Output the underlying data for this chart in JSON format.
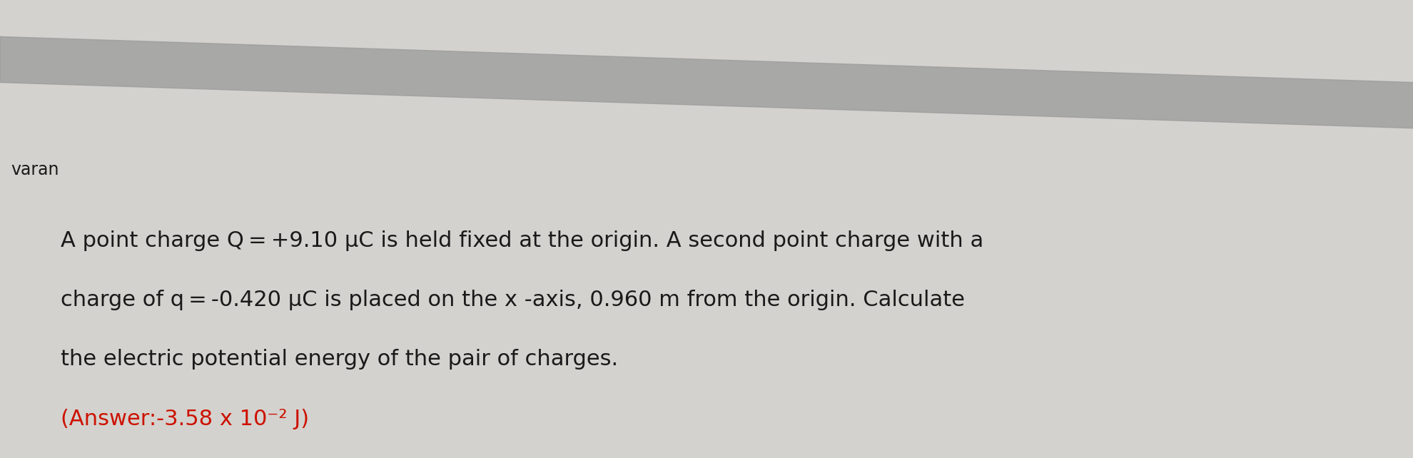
{
  "background_color": "#d4d2ce",
  "top_stripe_color": "#9a9a9a",
  "label_text": "varan",
  "label_fontsize": 17,
  "label_color": "#1a1a1a",
  "body_text_line1": "A point charge Q = +9.10 μC is held fixed at the origin. A second point charge with a",
  "body_text_line2": "charge of q = -0.420 μC is placed on the x -axis, 0.960 m from the origin. Calculate",
  "body_text_line3": "the electric potential energy of the pair of charges.",
  "answer_text": "(Answer:-3.58 x 10⁻² J)",
  "body_color": "#1a1a1a",
  "answer_color": "#cc1100",
  "body_fontsize": 22,
  "answer_fontsize": 22,
  "label_fontsize_val": 17
}
